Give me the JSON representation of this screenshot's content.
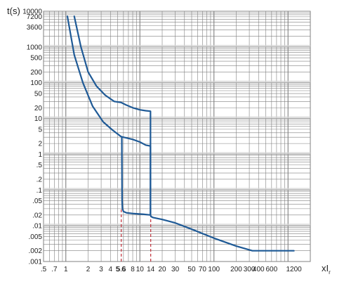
{
  "chart_data": {
    "type": "line",
    "ylabel": "t(s)",
    "xlabel": "xI",
    "xlabel_sub": "r",
    "xscale": "log",
    "yscale": "log",
    "xlim": [
      0.5,
      2000
    ],
    "ylim": [
      0.001,
      10000
    ],
    "grid": true,
    "y_ticks": [
      {
        "v": 10000,
        "label": "10000"
      },
      {
        "v": 7200,
        "label": "7200"
      },
      {
        "v": 3600,
        "label": "3600"
      },
      {
        "v": 1000,
        "label": "1000"
      },
      {
        "v": 500,
        "label": "500"
      },
      {
        "v": 200,
        "label": "200"
      },
      {
        "v": 100,
        "label": "100"
      },
      {
        "v": 50,
        "label": "50"
      },
      {
        "v": 20,
        "label": "20"
      },
      {
        "v": 10,
        "label": "10"
      },
      {
        "v": 5,
        "label": "5"
      },
      {
        "v": 2,
        "label": "2"
      },
      {
        "v": 1,
        "label": "1"
      },
      {
        "v": 0.5,
        "label": ".5"
      },
      {
        "v": 0.2,
        "label": ".2"
      },
      {
        "v": 0.1,
        "label": ".1"
      },
      {
        "v": 0.05,
        "label": ".05"
      },
      {
        "v": 0.02,
        "label": ".02"
      },
      {
        "v": 0.01,
        "label": ".01"
      },
      {
        "v": 0.005,
        "label": ".005"
      },
      {
        "v": 0.002,
        "label": ".002"
      },
      {
        "v": 0.001,
        "label": ".001"
      }
    ],
    "x_ticks": [
      {
        "v": 0.5,
        "label": ".5"
      },
      {
        "v": 0.7,
        "label": ".7"
      },
      {
        "v": 1,
        "label": "1"
      },
      {
        "v": 2,
        "label": "2"
      },
      {
        "v": 3,
        "label": "3"
      },
      {
        "v": 4,
        "label": "4"
      },
      {
        "v": 5,
        "label": "5"
      },
      {
        "v": 5.6,
        "label": "5.6",
        "highlight": true
      },
      {
        "v": 6,
        "label": "6"
      },
      {
        "v": 8,
        "label": "8"
      },
      {
        "v": 10,
        "label": "10"
      },
      {
        "v": 14,
        "label": "14",
        "highlight": true
      },
      {
        "v": 20,
        "label": "20"
      },
      {
        "v": 30,
        "label": "30"
      },
      {
        "v": 50,
        "label": "50"
      },
      {
        "v": 70,
        "label": "70"
      },
      {
        "v": 100,
        "label": "100"
      },
      {
        "v": 200,
        "label": "200"
      },
      {
        "v": 300,
        "label": "300"
      },
      {
        "v": 400,
        "label": "400"
      },
      {
        "v": 600,
        "label": "600"
      },
      {
        "v": 1200,
        "label": "1200"
      }
    ],
    "reference_lines": [
      {
        "x": 5.6,
        "y_from": 0.001,
        "y_to": 0.03
      },
      {
        "x": 14,
        "y_from": 0.001,
        "y_to": 0.027
      }
    ],
    "series": [
      {
        "x": [
          1.05,
          1.3,
          1.7,
          2.3,
          3.2,
          4.3,
          5.6,
          5.7,
          5.75,
          5.8,
          6,
          6.6,
          8,
          11,
          13.9,
          14,
          14.2,
          15,
          20,
          30,
          50,
          100,
          200,
          330,
          400,
          600,
          1200
        ],
        "y": [
          7200,
          600,
          100,
          22,
          8,
          4.7,
          3.1,
          3.1,
          0.05,
          0.03,
          0.025,
          0.023,
          0.022,
          0.021,
          0.02,
          0.019,
          0.018,
          0.017,
          0.015,
          0.012,
          0.008,
          0.0045,
          0.0027,
          0.002,
          0.002,
          0.002,
          0.002
        ]
      },
      {
        "x": [
          1.3,
          1.6,
          2,
          2.6,
          3.4,
          4.5,
          5.6,
          6.5,
          8,
          10,
          12,
          13.9,
          13.9
        ],
        "y": [
          7200,
          1000,
          200,
          80,
          45,
          30,
          28,
          24,
          20,
          17.5,
          16.5,
          16,
          0.021
        ]
      },
      {
        "x": [
          5.6,
          8,
          10,
          12,
          13.9,
          13.9
        ],
        "y": [
          3.1,
          2.6,
          2.2,
          1.8,
          1.7,
          0.021
        ]
      }
    ],
    "colors": {
      "curve": "#1f5a96",
      "grid": "#808080",
      "grid_band": "#d2d2d2",
      "reference": "#c0303a",
      "highlight_text": "#c0303a",
      "text": "#222222"
    }
  }
}
